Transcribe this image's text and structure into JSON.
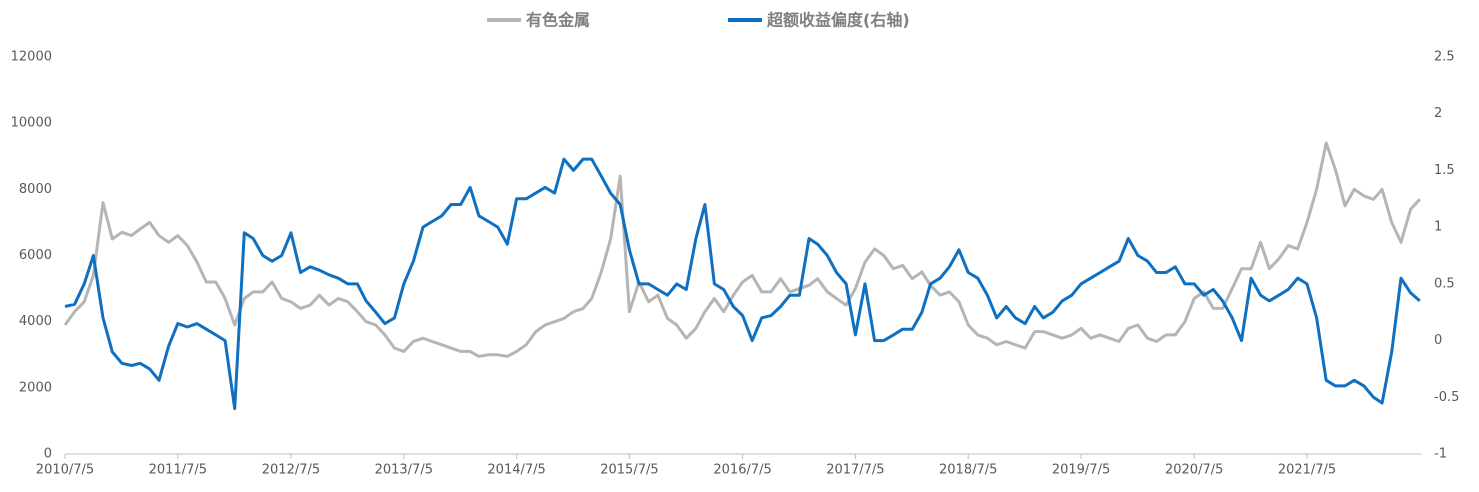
{
  "chart_data": {
    "type": "line",
    "x": [
      "2010/7/5",
      "2010/8/5",
      "2010/9/5",
      "2010/10/5",
      "2010/11/5",
      "2010/12/5",
      "2011/1/5",
      "2011/2/5",
      "2011/3/5",
      "2011/4/5",
      "2011/5/5",
      "2011/6/5",
      "2011/7/5",
      "2011/8/5",
      "2011/9/5",
      "2011/10/5",
      "2011/11/5",
      "2011/12/5",
      "2012/1/5",
      "2012/2/5",
      "2012/3/5",
      "2012/4/5",
      "2012/5/5",
      "2012/6/5",
      "2012/7/5",
      "2012/8/5",
      "2012/9/5",
      "2012/10/5",
      "2012/11/5",
      "2012/12/5",
      "2013/1/5",
      "2013/2/5",
      "2013/3/5",
      "2013/4/5",
      "2013/5/5",
      "2013/6/5",
      "2013/7/5",
      "2013/8/5",
      "2013/9/5",
      "2013/10/5",
      "2013/11/5",
      "2013/12/5",
      "2014/1/5",
      "2014/2/5",
      "2014/3/5",
      "2014/4/5",
      "2014/5/5",
      "2014/6/5",
      "2014/7/5",
      "2014/8/5",
      "2014/9/5",
      "2014/10/5",
      "2014/11/5",
      "2014/12/5",
      "2015/1/5",
      "2015/2/5",
      "2015/3/5",
      "2015/4/5",
      "2015/5/5",
      "2015/6/5",
      "2015/7/5",
      "2015/8/5",
      "2015/9/5",
      "2015/10/5",
      "2015/11/5",
      "2015/12/5",
      "2016/1/5",
      "2016/2/5",
      "2016/3/5",
      "2016/4/5",
      "2016/5/5",
      "2016/6/5",
      "2016/7/5",
      "2016/8/5",
      "2016/9/5",
      "2016/10/5",
      "2016/11/5",
      "2016/12/5",
      "2017/1/5",
      "2017/2/5",
      "2017/3/5",
      "2017/4/5",
      "2017/5/5",
      "2017/6/5",
      "2017/7/5",
      "2017/8/5",
      "2017/9/5",
      "2017/10/5",
      "2017/11/5",
      "2017/12/5",
      "2018/1/5",
      "2018/2/5",
      "2018/3/5",
      "2018/4/5",
      "2018/5/5",
      "2018/6/5",
      "2018/7/5",
      "2018/8/5",
      "2018/9/5",
      "2018/10/5",
      "2018/11/5",
      "2018/12/5",
      "2019/1/5",
      "2019/2/5",
      "2019/3/5",
      "2019/4/5",
      "2019/5/5",
      "2019/6/5",
      "2019/7/5",
      "2019/8/5",
      "2019/9/5",
      "2019/10/5",
      "2019/11/5",
      "2019/12/5",
      "2020/1/5",
      "2020/2/5",
      "2020/3/5",
      "2020/4/5",
      "2020/5/5",
      "2020/6/5",
      "2020/7/5",
      "2020/8/5",
      "2020/9/5",
      "2020/10/5",
      "2020/11/5",
      "2020/12/5",
      "2021/1/5",
      "2021/2/5",
      "2021/3/5",
      "2021/4/5",
      "2021/5/5",
      "2021/6/5",
      "2021/7/5",
      "2021/8/5",
      "2021/9/5",
      "2021/10/5",
      "2021/11/5",
      "2021/12/5",
      "2022/1/5",
      "2022/2/5",
      "2022/3/5",
      "2022/4/5",
      "2022/5/5",
      "2022/6/5",
      "2022/7/5"
    ],
    "series": [
      {
        "name": "有色金属",
        "color": "#b5b5b5",
        "values": [
          3900,
          4300,
          4600,
          5400,
          7600,
          6500,
          6700,
          6600,
          6800,
          7000,
          6600,
          6400,
          6600,
          6300,
          5800,
          5200,
          5200,
          4700,
          3900,
          4700,
          4900,
          4900,
          5200,
          4700,
          4600,
          4400,
          4500,
          4800,
          4500,
          4700,
          4600,
          4300,
          4000,
          3900,
          3600,
          3200,
          3100,
          3400,
          3500,
          3400,
          3300,
          3200,
          3100,
          3100,
          2950,
          3000,
          3000,
          2950,
          3100,
          3300,
          3700,
          3900,
          4000,
          4100,
          4300,
          4400,
          4700,
          5500,
          6500,
          8400,
          4300,
          5200,
          4600,
          4800,
          4100,
          3900,
          3500,
          3800,
          4300,
          4700,
          4300,
          4800,
          5200,
          5400,
          4900,
          4900,
          5300,
          4900,
          5000,
          5100,
          5300,
          4900,
          4700,
          4500,
          5000,
          5800,
          6200,
          6000,
          5600,
          5700,
          5300,
          5500,
          5100,
          4800,
          4900,
          4600,
          3900,
          3600,
          3500,
          3300,
          3400,
          3300,
          3200,
          3700,
          3700,
          3600,
          3500,
          3600,
          3800,
          3500,
          3600,
          3500,
          3400,
          3800,
          3900,
          3500,
          3400,
          3600,
          3600,
          4000,
          4700,
          4900,
          4400,
          4400,
          5000,
          5600,
          5600,
          6400,
          5600,
          5900,
          6300,
          6200,
          7000,
          8000,
          9400,
          8600,
          7500,
          8000,
          7800,
          7700,
          8000,
          7000,
          6400,
          7400,
          7700
        ]
      },
      {
        "name": "超额收益偏度(右轴)",
        "color": "#0f6fc0",
        "axis": "y2",
        "values": [
          0.3,
          0.32,
          0.5,
          0.75,
          0.2,
          -0.1,
          -0.2,
          -0.22,
          -0.2,
          -0.25,
          -0.35,
          -0.05,
          0.15,
          0.12,
          0.15,
          0.1,
          0.05,
          0.0,
          -0.6,
          0.95,
          0.9,
          0.75,
          0.7,
          0.75,
          0.95,
          0.6,
          0.65,
          0.62,
          0.58,
          0.55,
          0.5,
          0.5,
          0.35,
          0.25,
          0.15,
          0.2,
          0.5,
          0.7,
          1.0,
          1.05,
          1.1,
          1.2,
          1.2,
          1.35,
          1.1,
          1.05,
          1.0,
          0.85,
          1.25,
          1.25,
          1.3,
          1.35,
          1.3,
          1.6,
          1.5,
          1.6,
          1.6,
          1.45,
          1.3,
          1.2,
          0.8,
          0.5,
          0.5,
          0.45,
          0.4,
          0.5,
          0.45,
          0.9,
          1.2,
          0.5,
          0.45,
          0.3,
          0.22,
          0.0,
          0.2,
          0.22,
          0.3,
          0.4,
          0.4,
          0.9,
          0.85,
          0.75,
          0.6,
          0.5,
          0.05,
          0.5,
          0.0,
          0.0,
          0.05,
          0.1,
          0.1,
          0.25,
          0.5,
          0.55,
          0.65,
          0.8,
          0.6,
          0.55,
          0.4,
          0.2,
          0.3,
          0.2,
          0.15,
          0.3,
          0.2,
          0.25,
          0.35,
          0.4,
          0.5,
          0.55,
          0.6,
          0.65,
          0.7,
          0.9,
          0.75,
          0.7,
          0.6,
          0.6,
          0.65,
          0.5,
          0.5,
          0.4,
          0.45,
          0.35,
          0.2,
          0.0,
          0.55,
          0.4,
          0.35,
          0.4,
          0.45,
          0.55,
          0.5,
          0.2,
          -0.35,
          -0.4,
          -0.4,
          -0.35,
          -0.4,
          -0.5,
          -0.55,
          -0.1,
          0.55,
          0.42,
          0.35
        ]
      }
    ],
    "xlim": [
      "2010/7/5",
      "2022/7/12"
    ],
    "xticks": [
      "2010/7/5",
      "2011/7/5",
      "2012/7/5",
      "2013/7/5",
      "2014/7/5",
      "2015/7/5",
      "2016/7/5",
      "2017/7/5",
      "2018/7/5",
      "2019/7/5",
      "2020/7/5",
      "2021/7/5"
    ],
    "ylim": [
      0,
      12000
    ],
    "yticks": [
      0,
      2000,
      4000,
      6000,
      8000,
      10000,
      12000
    ],
    "y2lim": [
      -1,
      2.5
    ],
    "y2ticks": [
      -1,
      -0.5,
      0,
      0.5,
      1,
      1.5,
      2,
      2.5
    ],
    "legend": "top"
  }
}
